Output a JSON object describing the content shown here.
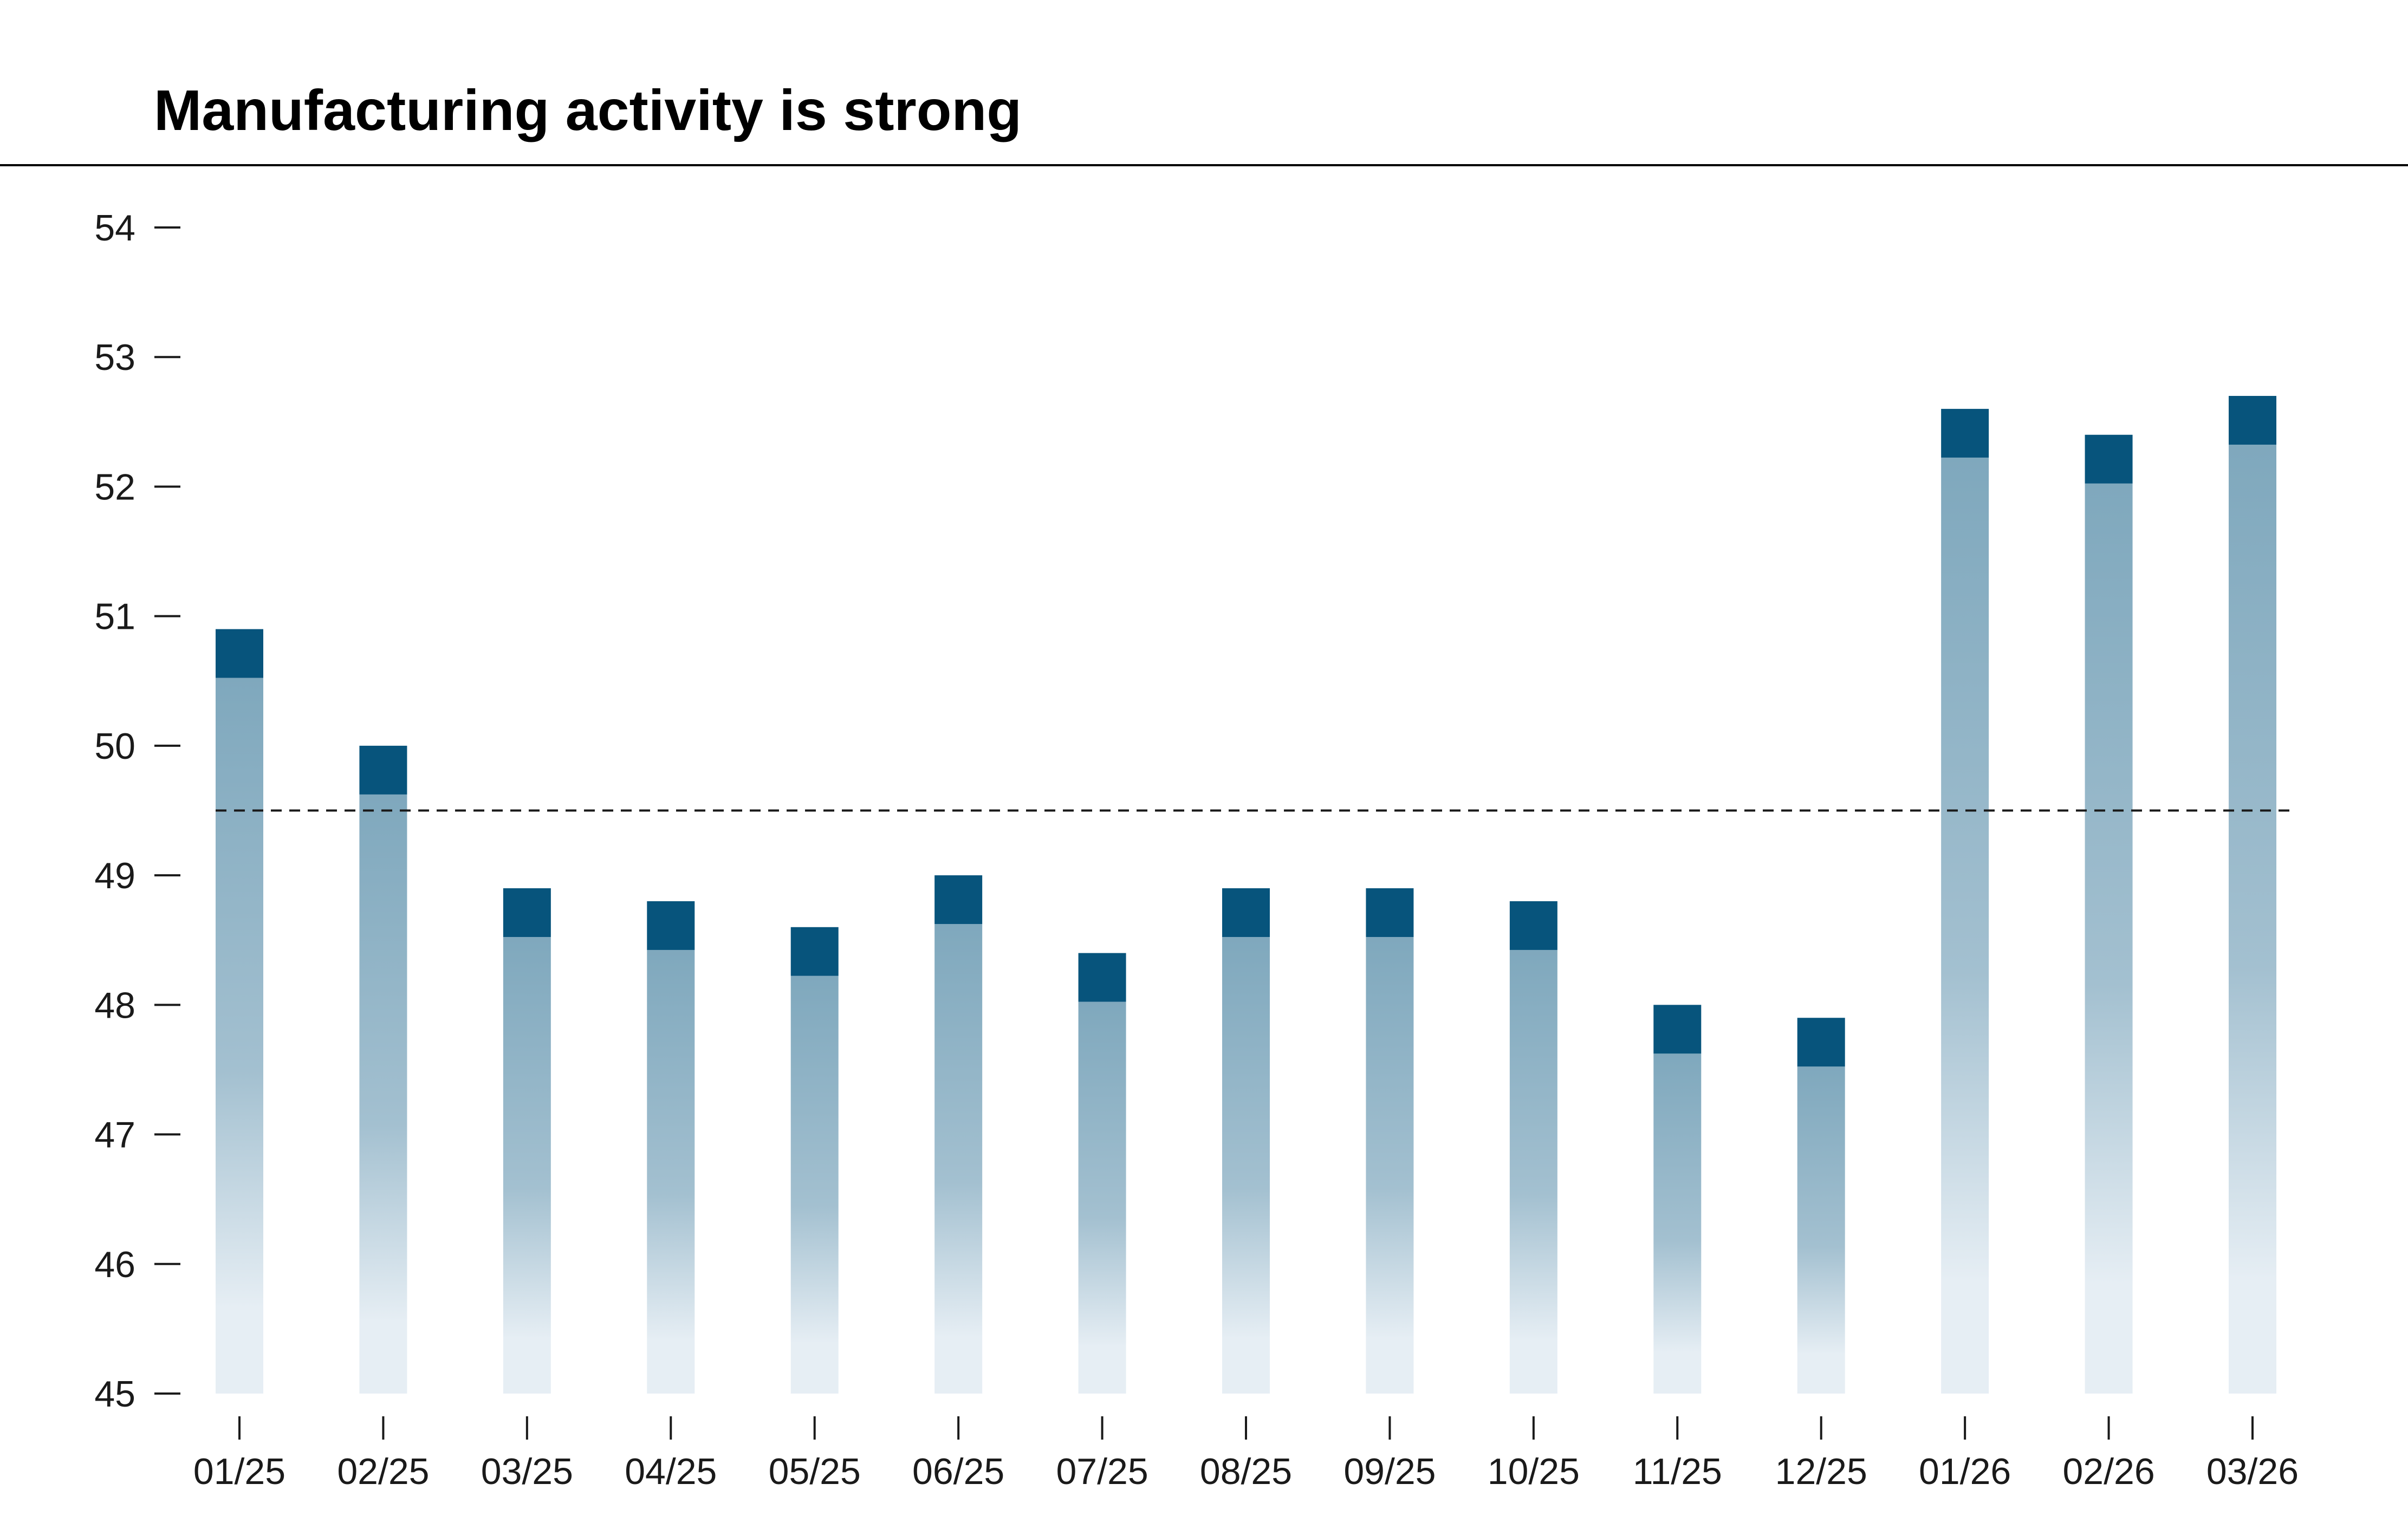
{
  "chart_data": {
    "type": "bar",
    "title": "Manufacturing activity is strong",
    "xlabel": "",
    "ylabel": "",
    "categories": [
      "01/25",
      "02/25",
      "03/25",
      "04/25",
      "05/25",
      "06/25",
      "07/25",
      "08/25",
      "09/25",
      "10/25",
      "11/25",
      "12/25",
      "01/26",
      "02/26",
      "03/26"
    ],
    "values": [
      50.9,
      50.0,
      48.9,
      48.8,
      48.6,
      49.0,
      48.4,
      48.9,
      48.9,
      48.8,
      48.0,
      47.9,
      52.6,
      52.4,
      52.7
    ],
    "ylim": [
      45,
      54
    ],
    "yticks": [
      45,
      46,
      47,
      48,
      49,
      50,
      51,
      52,
      53,
      54
    ],
    "reference_line": 49.5,
    "grid": false,
    "colors": {
      "bar_cap": "#07547c",
      "bar_top": "#7fa8bd",
      "bar_bottom": "#e6eef4",
      "reference_line": "#1a1a1a"
    }
  }
}
